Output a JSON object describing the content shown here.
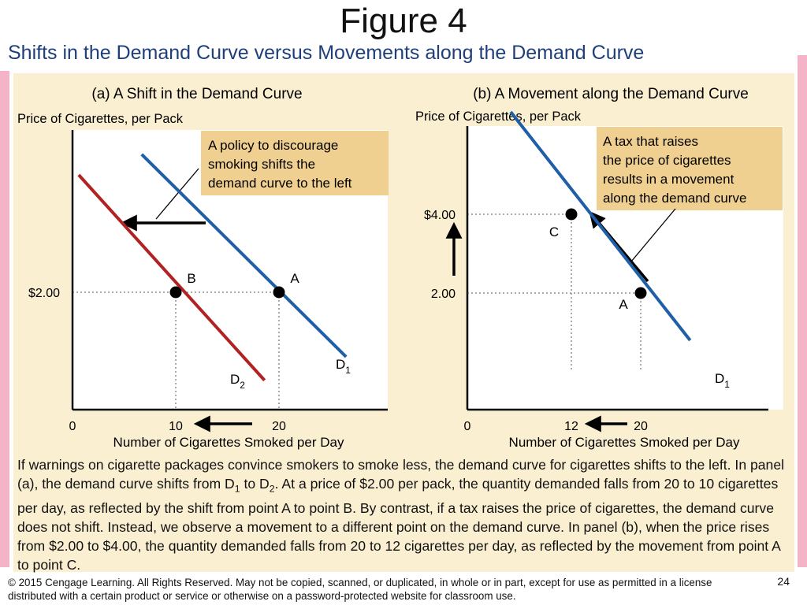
{
  "slide": {
    "title": "Figure 4",
    "subtitle": "Shifts in the Demand Curve versus Movements along the Demand Curve",
    "caption_parts": [
      "If warnings on cigarette packages convince smokers to smoke less, the demand curve for cigarettes shifts to the left. In panel (a), the demand curve shifts from D",
      "1",
      " to D",
      "2",
      ". At a price of $2.00 per pack, the quantity demanded falls from 20 to 10 cigarettes per day, as reflected by the shift from point A to point B. By contrast, if a tax raises the price of cigarettes, the demand curve does not shift. Instead, we observe a movement to a different point on the demand curve. In panel (b), when the price rises from $2.00 to $4.00, the quantity demanded falls from 20 to 12 cigarettes per day, as reflected by the movement from point A to point C."
    ],
    "footer": "© 2015 Cengage Learning. All Rights Reserved. May not be copied, scanned, or duplicated, in whole or in part, except for use as permitted in a license distributed with a certain product or service or otherwise on a password-protected website for classroom use.",
    "page_number": "24",
    "colors": {
      "panel_bg": "#fbefd1",
      "d1": "#1f5fa8",
      "d2": "#b22222",
      "callout": "#f0d090",
      "subtitle": "#1f3f7a"
    }
  },
  "chart_data": [
    {
      "type": "line",
      "title": "(a) A Shift in the Demand Curve",
      "ylabel": "Price of Cigarettes, per Pack",
      "xlabel": "Number of Cigarettes Smoked per Day",
      "xlim": [
        0,
        32
      ],
      "ylim": [
        0,
        4.8
      ],
      "x_ticks": [
        {
          "value": 0,
          "label": "0"
        },
        {
          "value": 10,
          "label": "10"
        },
        {
          "value": 20,
          "label": "20"
        }
      ],
      "y_ticks": [
        {
          "value": 2,
          "label": "$2.00"
        }
      ],
      "series": [
        {
          "name": "D1",
          "color": "#1f5fa8",
          "points": [
            [
              6.7,
              4.35
            ],
            [
              26.5,
              0.9
            ]
          ]
        },
        {
          "name": "D2",
          "color": "#b22222",
          "points": [
            [
              0.6,
              4.0
            ],
            [
              18.6,
              0.5
            ]
          ]
        }
      ],
      "points": [
        {
          "label": "A",
          "x": 20,
          "y": 2.0
        },
        {
          "label": "B",
          "x": 10,
          "y": 2.0
        }
      ],
      "annotations": [
        "A policy to discourage smoking shifts the demand curve to the left"
      ]
    },
    {
      "type": "line",
      "title": "(b) A Movement along the Demand Curve",
      "ylabel": "Price of Cigarettes, per Pack",
      "xlabel": "Number of Cigarettes Smoked per Day",
      "xlim": [
        0,
        32
      ],
      "ylim": [
        0,
        5.2
      ],
      "x_ticks": [
        {
          "value": 0,
          "label": "0"
        },
        {
          "value": 12,
          "label": "12"
        },
        {
          "value": 20,
          "label": "20"
        }
      ],
      "y_ticks": [
        {
          "value": 4,
          "label": "$4.00"
        },
        {
          "value": 2,
          "label": "2.00"
        }
      ],
      "series": [
        {
          "name": "D1",
          "color": "#1f5fa8",
          "points": [
            [
              5.0,
              6.6
            ],
            [
              25.7,
              0.8
            ]
          ]
        }
      ],
      "points": [
        {
          "label": "C",
          "x": 12,
          "y": 4.0
        },
        {
          "label": "A",
          "x": 20,
          "y": 2.0
        }
      ],
      "annotations": [
        "A tax that raises the price of cigarettes results in a movement along the demand curve"
      ]
    }
  ]
}
